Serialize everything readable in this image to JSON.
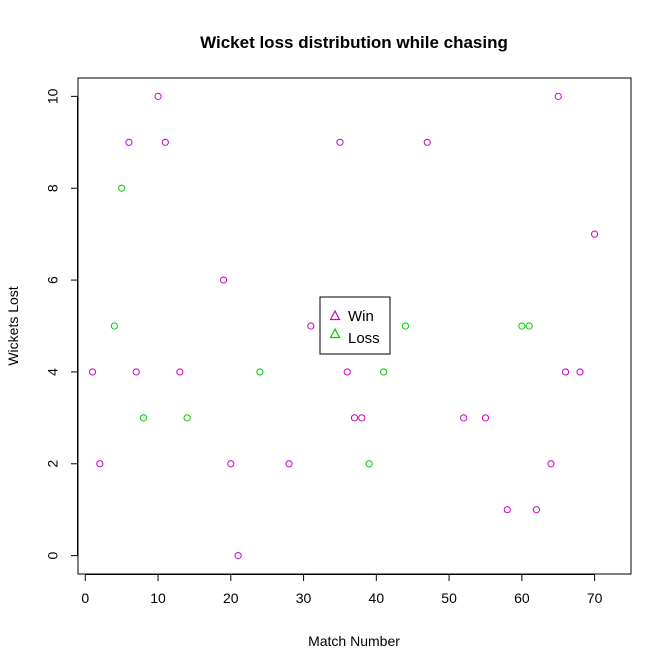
{
  "chart_data": {
    "type": "scatter",
    "title": "Wicket loss distribution while chasing",
    "xlabel": "Match Number",
    "ylabel": "Wickets Lost",
    "xlim": [
      -1,
      75
    ],
    "ylim": [
      -0.4,
      10.4
    ],
    "xticks": [
      0,
      10,
      20,
      30,
      40,
      50,
      60,
      70
    ],
    "yticks": [
      0,
      2,
      4,
      6,
      8,
      10
    ],
    "xtick_labels": [
      "0",
      "10",
      "20",
      "30",
      "40",
      "50",
      "60",
      "70"
    ],
    "ytick_labels": [
      "0",
      "2",
      "4",
      "6",
      "8",
      "10"
    ],
    "grid": false,
    "legend_position": "center",
    "series": [
      {
        "name": "Win",
        "color": "#cc00cc",
        "marker": "circle",
        "points": [
          {
            "x": 1,
            "y": 4
          },
          {
            "x": 2,
            "y": 2
          },
          {
            "x": 6,
            "y": 9
          },
          {
            "x": 7,
            "y": 4
          },
          {
            "x": 10,
            "y": 10
          },
          {
            "x": 11,
            "y": 9
          },
          {
            "x": 13,
            "y": 4
          },
          {
            "x": 19,
            "y": 6
          },
          {
            "x": 20,
            "y": 2
          },
          {
            "x": 21,
            "y": 0
          },
          {
            "x": 28,
            "y": 2
          },
          {
            "x": 31,
            "y": 5
          },
          {
            "x": 35,
            "y": 9
          },
          {
            "x": 36,
            "y": 4
          },
          {
            "x": 37,
            "y": 3
          },
          {
            "x": 38,
            "y": 3
          },
          {
            "x": 47,
            "y": 9
          },
          {
            "x": 52,
            "y": 3
          },
          {
            "x": 55,
            "y": 3
          },
          {
            "x": 58,
            "y": 1
          },
          {
            "x": 62,
            "y": 1
          },
          {
            "x": 64,
            "y": 2
          },
          {
            "x": 65,
            "y": 10
          },
          {
            "x": 66,
            "y": 4
          },
          {
            "x": 68,
            "y": 4
          },
          {
            "x": 70,
            "y": 7
          }
        ]
      },
      {
        "name": "Loss",
        "color": "#00cc00",
        "marker": "circle",
        "points": [
          {
            "x": 4,
            "y": 5
          },
          {
            "x": 5,
            "y": 8
          },
          {
            "x": 8,
            "y": 3
          },
          {
            "x": 14,
            "y": 3
          },
          {
            "x": 24,
            "y": 4
          },
          {
            "x": 39,
            "y": 2
          },
          {
            "x": 41,
            "y": 4
          },
          {
            "x": 44,
            "y": 5
          },
          {
            "x": 60,
            "y": 5
          },
          {
            "x": 61,
            "y": 5
          }
        ]
      }
    ],
    "legend": {
      "marker": "triangle",
      "entries": [
        {
          "label": "Win",
          "color": "#cc00cc"
        },
        {
          "label": "Loss",
          "color": "#00cc00"
        }
      ]
    }
  }
}
